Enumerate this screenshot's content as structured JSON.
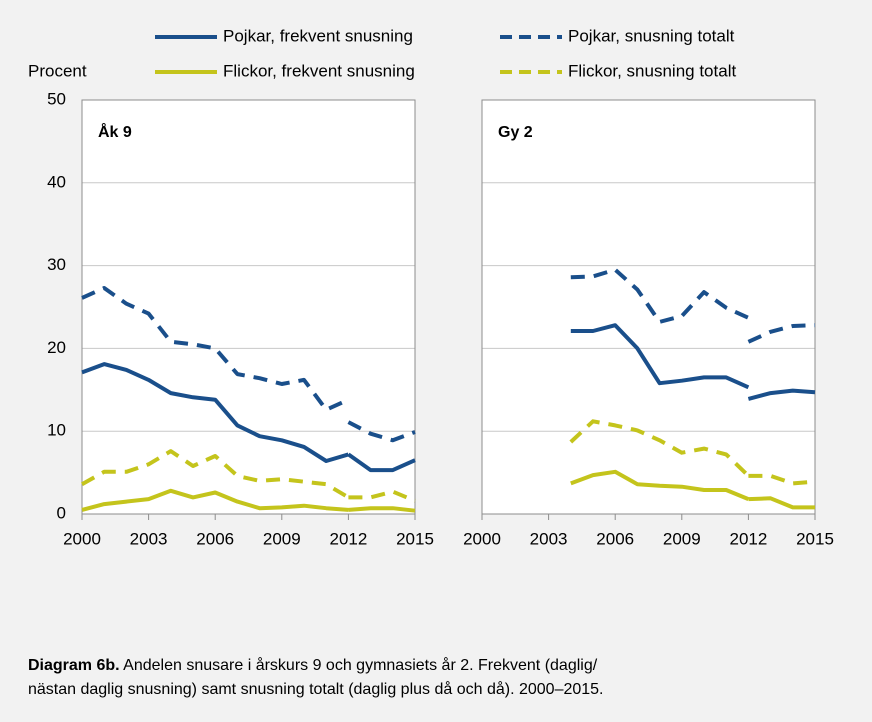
{
  "legend_ylabel": "Procent",
  "caption": {
    "bold": "Diagram 6b.",
    "line1": "Andelen snusare i årskurs 9 och gymnasiets år 2. Frekvent (daglig/",
    "line2": "nästan daglig snusning) samt snusning totalt (daglig plus då och då). 2000–2015."
  },
  "chart_data": [
    {
      "type": "line",
      "title": "Åk 9",
      "x": [
        2000,
        2001,
        2002,
        2003,
        2004,
        2005,
        2006,
        2007,
        2008,
        2009,
        2010,
        2011,
        2012,
        2012,
        2012,
        2013,
        2014,
        2015
      ],
      "xlim": [
        2000,
        2015
      ],
      "xticks": [
        2000,
        2003,
        2006,
        2009,
        2012,
        2015
      ],
      "ylim": [
        0,
        50
      ],
      "yticks": [
        0,
        10,
        20,
        30,
        40,
        50
      ],
      "grid": true,
      "series": [
        {
          "name": "Pojkar, frekvent snusning",
          "color": "#1a4f8b",
          "dashed": false,
          "values": [
            17.1,
            18.1,
            17.4,
            16.2,
            14.6,
            14.1,
            13.8,
            10.7,
            9.4,
            8.9,
            8.1,
            6.4,
            7.2,
            null,
            7.2,
            5.3,
            5.3,
            6.5
          ]
        },
        {
          "name": "Pojkar, snusning totalt",
          "color": "#1a4f8b",
          "dashed": true,
          "values": [
            26.1,
            27.3,
            25.4,
            24.2,
            20.8,
            20.5,
            20.0,
            16.9,
            16.4,
            15.7,
            16.2,
            12.6,
            13.8,
            null,
            11.1,
            9.7,
            8.9,
            9.9
          ]
        },
        {
          "name": "Flickor, frekvent snusning",
          "color": "#c4c41c",
          "dashed": false,
          "values": [
            0.5,
            1.2,
            1.5,
            1.8,
            2.8,
            2.0,
            2.6,
            1.5,
            0.7,
            0.8,
            1.0,
            0.7,
            0.5,
            null,
            0.5,
            0.7,
            0.7,
            0.4
          ]
        },
        {
          "name": "Flickor, snusning totalt",
          "color": "#c4c41c",
          "dashed": true,
          "values": [
            3.6,
            5.1,
            5.1,
            6.0,
            7.6,
            5.8,
            7.0,
            4.6,
            4.0,
            4.2,
            3.9,
            3.6,
            2.0,
            null,
            2.0,
            2.0,
            2.7,
            1.6
          ]
        }
      ]
    },
    {
      "type": "line",
      "title": "Gy 2",
      "x": [
        2000,
        2001,
        2002,
        2003,
        2004,
        2005,
        2006,
        2007,
        2008,
        2009,
        2010,
        2011,
        2012,
        2012,
        2012,
        2013,
        2014,
        2015
      ],
      "xlim": [
        2000,
        2015
      ],
      "xticks": [
        2000,
        2003,
        2006,
        2009,
        2012,
        2015
      ],
      "ylim": [
        0,
        50
      ],
      "yticks": [
        0,
        10,
        20,
        30,
        40,
        50
      ],
      "grid": true,
      "series": [
        {
          "name": "Pojkar, frekvent snusning",
          "color": "#1a4f8b",
          "dashed": false,
          "values": [
            null,
            null,
            null,
            null,
            22.1,
            22.1,
            22.8,
            20.0,
            15.8,
            16.1,
            16.5,
            16.5,
            15.3,
            null,
            13.9,
            14.6,
            14.9,
            14.7
          ]
        },
        {
          "name": "Pojkar, snusning totalt",
          "color": "#1a4f8b",
          "dashed": true,
          "values": [
            null,
            null,
            null,
            null,
            28.6,
            28.7,
            29.5,
            27.1,
            23.2,
            23.9,
            26.8,
            24.9,
            23.7,
            null,
            20.8,
            22.0,
            22.7,
            22.8
          ]
        },
        {
          "name": "Flickor, frekvent snusning",
          "color": "#c4c41c",
          "dashed": false,
          "values": [
            null,
            null,
            null,
            null,
            3.7,
            4.7,
            5.1,
            3.6,
            3.4,
            3.3,
            2.9,
            2.9,
            1.8,
            null,
            1.8,
            1.9,
            0.8,
            0.8
          ]
        },
        {
          "name": "Flickor, snusning totalt",
          "color": "#c4c41c",
          "dashed": true,
          "values": [
            null,
            null,
            null,
            null,
            8.7,
            11.2,
            10.7,
            10.1,
            8.9,
            7.4,
            7.9,
            7.2,
            4.6,
            null,
            4.6,
            4.6,
            3.7,
            3.9
          ]
        }
      ]
    }
  ]
}
